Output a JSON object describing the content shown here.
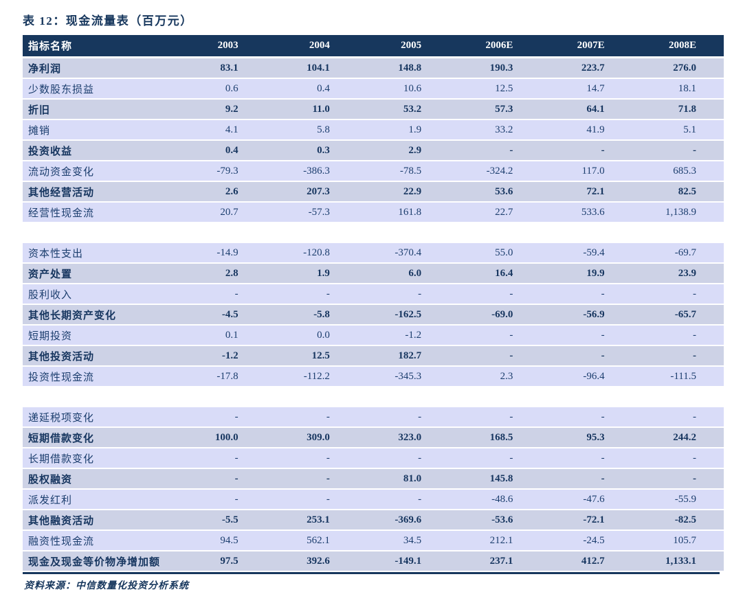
{
  "title": "表 12：现金流量表（百万元）",
  "source_note": "资料来源：中信数量化投资分析系统",
  "colors": {
    "header_bg": "#17375D",
    "row_emphasis_bg": "#CDD2E6",
    "row_regular_bg": "#D9DCF8",
    "text_navy": "#1C3E6E",
    "accent_navy": "#17375D"
  },
  "table": {
    "columns": [
      "指标名称",
      "2003",
      "2004",
      "2005",
      "2006E",
      "2007E",
      "2008E"
    ],
    "sections": [
      {
        "rows": [
          {
            "label": "净利润",
            "emphasis": true,
            "values": [
              "83.1",
              "104.1",
              "148.8",
              "190.3",
              "223.7",
              "276.0"
            ]
          },
          {
            "label": "少数股东损益",
            "emphasis": false,
            "values": [
              "0.6",
              "0.4",
              "10.6",
              "12.5",
              "14.7",
              "18.1"
            ]
          },
          {
            "label": "折旧",
            "emphasis": true,
            "values": [
              "9.2",
              "11.0",
              "53.2",
              "57.3",
              "64.1",
              "71.8"
            ]
          },
          {
            "label": "摊销",
            "emphasis": false,
            "values": [
              "4.1",
              "5.8",
              "1.9",
              "33.2",
              "41.9",
              "5.1"
            ]
          },
          {
            "label": "投资收益",
            "emphasis": true,
            "values": [
              "0.4",
              "0.3",
              "2.9",
              "-",
              "-",
              "-"
            ]
          },
          {
            "label": "流动资金变化",
            "emphasis": false,
            "values": [
              "-79.3",
              "-386.3",
              "-78.5",
              "-324.2",
              "117.0",
              "685.3"
            ]
          },
          {
            "label": "其他经营活动",
            "emphasis": true,
            "values": [
              "2.6",
              "207.3",
              "22.9",
              "53.6",
              "72.1",
              "82.5"
            ]
          },
          {
            "label": "经营性现金流",
            "emphasis": false,
            "values": [
              "20.7",
              "-57.3",
              "161.8",
              "22.7",
              "533.6",
              "1,138.9"
            ]
          }
        ]
      },
      {
        "rows": [
          {
            "label": "资本性支出",
            "emphasis": false,
            "values": [
              "-14.9",
              "-120.8",
              "-370.4",
              "55.0",
              "-59.4",
              "-69.7"
            ]
          },
          {
            "label": "资产处置",
            "emphasis": true,
            "values": [
              "2.8",
              "1.9",
              "6.0",
              "16.4",
              "19.9",
              "23.9"
            ]
          },
          {
            "label": "股利收入",
            "emphasis": false,
            "values": [
              "-",
              "-",
              "-",
              "-",
              "-",
              "-"
            ]
          },
          {
            "label": "其他长期资产变化",
            "emphasis": true,
            "values": [
              "-4.5",
              "-5.8",
              "-162.5",
              "-69.0",
              "-56.9",
              "-65.7"
            ]
          },
          {
            "label": "短期投资",
            "emphasis": false,
            "values": [
              "0.1",
              "0.0",
              "-1.2",
              "-",
              "-",
              "-"
            ]
          },
          {
            "label": "其他投资活动",
            "emphasis": true,
            "values": [
              "-1.2",
              "12.5",
              "182.7",
              "-",
              "-",
              "-"
            ]
          },
          {
            "label": "投资性现金流",
            "emphasis": false,
            "values": [
              "-17.8",
              "-112.2",
              "-345.3",
              "2.3",
              "-96.4",
              "-111.5"
            ]
          }
        ]
      },
      {
        "rows": [
          {
            "label": "递延税项变化",
            "emphasis": false,
            "values": [
              "-",
              "-",
              "-",
              "-",
              "-",
              "-"
            ]
          },
          {
            "label": "短期借款变化",
            "emphasis": true,
            "values": [
              "100.0",
              "309.0",
              "323.0",
              "168.5",
              "95.3",
              "244.2"
            ]
          },
          {
            "label": "长期借款变化",
            "emphasis": false,
            "values": [
              "-",
              "-",
              "-",
              "-",
              "-",
              "-"
            ]
          },
          {
            "label": "股权融资",
            "emphasis": true,
            "values": [
              "-",
              "-",
              "81.0",
              "145.8",
              "-",
              "-"
            ]
          },
          {
            "label": "派发红利",
            "emphasis": false,
            "values": [
              "-",
              "-",
              "-",
              "-48.6",
              "-47.6",
              "-55.9"
            ]
          },
          {
            "label": "其他融资活动",
            "emphasis": true,
            "values": [
              "-5.5",
              "253.1",
              "-369.6",
              "-53.6",
              "-72.1",
              "-82.5"
            ]
          },
          {
            "label": "融资性现金流",
            "emphasis": false,
            "values": [
              "94.5",
              "562.1",
              "34.5",
              "212.1",
              "-24.5",
              "105.7"
            ]
          },
          {
            "label": "现金及现金等价物净增加额",
            "emphasis": true,
            "values": [
              "97.5",
              "392.6",
              "-149.1",
              "237.1",
              "412.7",
              "1,133.1"
            ]
          }
        ]
      }
    ]
  }
}
